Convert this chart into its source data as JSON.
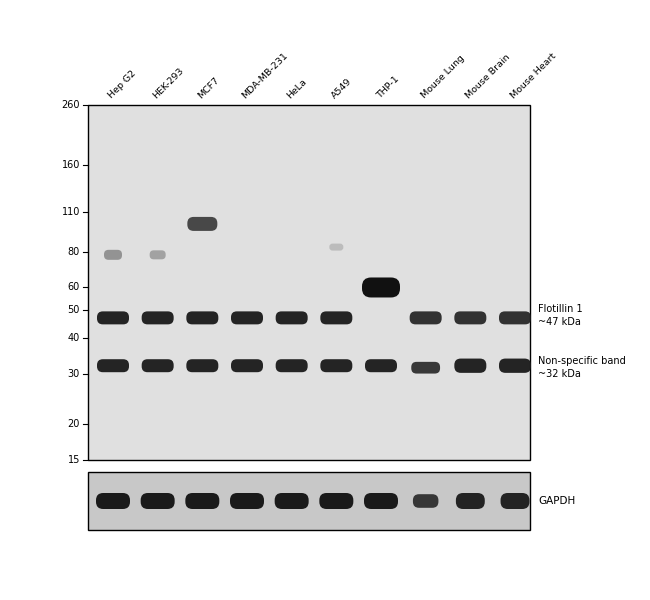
{
  "sample_labels": [
    "Hep G2",
    "HEK-293",
    "MCF7",
    "MDA-MB-231",
    "HeLa",
    "A549",
    "THP-1",
    "Mouse Lung",
    "Mouse Brain",
    "Mouse Heart"
  ],
  "mw_markers": [
    260,
    160,
    110,
    80,
    60,
    50,
    40,
    30,
    20,
    15
  ],
  "annotation_flotillin": "Flotillin 1\n~47 kDa",
  "annotation_nonspecific": "Non-specific band\n~32 kDa",
  "annotation_gapdh": "GAPDH",
  "bg_color": "#e0e0e0",
  "gapdh_bg": "#c8c8c8",
  "band_color": "#1a1a1a"
}
